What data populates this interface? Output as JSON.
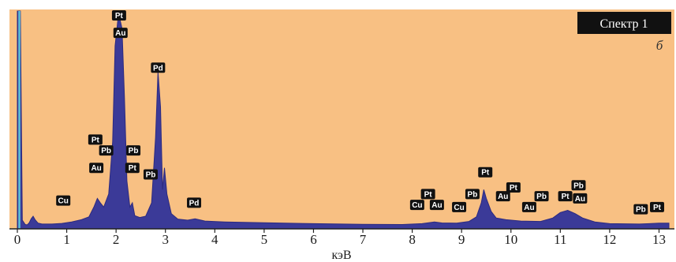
{
  "chart_data": {
    "type": "area",
    "title": "Спектр 1",
    "panel_label": "б",
    "xlabel": "кэВ",
    "ylabel": "",
    "xlim": [
      0,
      13.2
    ],
    "ylim": [
      0,
      100
    ],
    "x_ticks": [
      "0",
      "1",
      "2",
      "3",
      "4",
      "5",
      "6",
      "7",
      "8",
      "9",
      "10",
      "11",
      "12",
      "13"
    ],
    "grid": false,
    "colors": {
      "background": "#f8c083",
      "fill": "#3b3a98",
      "edge": "#2c2a80",
      "marker": "#5fc4d8",
      "tag_bg": "#111111",
      "tag_text": "#ffffff"
    },
    "series": [
      {
        "points": [
          [
            0.0,
            100
          ],
          [
            0.03,
            100
          ],
          [
            0.06,
            100
          ],
          [
            0.1,
            4
          ],
          [
            0.16,
            2
          ],
          [
            0.2,
            1.8
          ],
          [
            0.24,
            2.8
          ],
          [
            0.28,
            4.6
          ],
          [
            0.32,
            5.8
          ],
          [
            0.36,
            4.2
          ],
          [
            0.42,
            2.6
          ],
          [
            0.5,
            2.2
          ],
          [
            0.7,
            2.2
          ],
          [
            0.9,
            2.5
          ],
          [
            1.1,
            3.2
          ],
          [
            1.3,
            4.2
          ],
          [
            1.45,
            5.5
          ],
          [
            1.55,
            10
          ],
          [
            1.62,
            14
          ],
          [
            1.68,
            12
          ],
          [
            1.75,
            10
          ],
          [
            1.85,
            16
          ],
          [
            1.93,
            40
          ],
          [
            1.98,
            84
          ],
          [
            2.05,
            99
          ],
          [
            2.12,
            92
          ],
          [
            2.17,
            60
          ],
          [
            2.22,
            22
          ],
          [
            2.28,
            10
          ],
          [
            2.33,
            12
          ],
          [
            2.38,
            6
          ],
          [
            2.48,
            5.2
          ],
          [
            2.6,
            5.8
          ],
          [
            2.72,
            12
          ],
          [
            2.8,
            42
          ],
          [
            2.85,
            72
          ],
          [
            2.9,
            56
          ],
          [
            2.94,
            18
          ],
          [
            2.98,
            28
          ],
          [
            3.03,
            16
          ],
          [
            3.12,
            7
          ],
          [
            3.25,
            4.5
          ],
          [
            3.45,
            4
          ],
          [
            3.6,
            4.6
          ],
          [
            3.8,
            3.6
          ],
          [
            4.2,
            3.2
          ],
          [
            5.0,
            2.8
          ],
          [
            6.0,
            2.4
          ],
          [
            7.0,
            2.1
          ],
          [
            7.8,
            2.0
          ],
          [
            8.2,
            2.4
          ],
          [
            8.45,
            3.2
          ],
          [
            8.6,
            2.7
          ],
          [
            8.9,
            2.6
          ],
          [
            9.15,
            3.4
          ],
          [
            9.3,
            5.5
          ],
          [
            9.4,
            12
          ],
          [
            9.45,
            18
          ],
          [
            9.5,
            14
          ],
          [
            9.6,
            8
          ],
          [
            9.7,
            5
          ],
          [
            9.9,
            4.2
          ],
          [
            10.2,
            3.6
          ],
          [
            10.6,
            3.4
          ],
          [
            10.85,
            5
          ],
          [
            11.0,
            7.5
          ],
          [
            11.15,
            8.5
          ],
          [
            11.3,
            7
          ],
          [
            11.45,
            5
          ],
          [
            11.7,
            3.2
          ],
          [
            12.0,
            2.4
          ],
          [
            12.6,
            2.2
          ],
          [
            12.8,
            2.4
          ],
          [
            13.0,
            2.6
          ],
          [
            13.2,
            2.6
          ]
        ]
      }
    ],
    "annotations": [
      {
        "text": "Pt",
        "x": 2.06,
        "y": 98
      },
      {
        "text": "Au",
        "x": 2.09,
        "y": 90
      },
      {
        "text": "Pd",
        "x": 2.85,
        "y": 74
      },
      {
        "text": "Pt",
        "x": 1.58,
        "y": 41
      },
      {
        "text": "Pb",
        "x": 1.8,
        "y": 36
      },
      {
        "text": "Au",
        "x": 1.6,
        "y": 28
      },
      {
        "text": "Pb",
        "x": 2.35,
        "y": 36
      },
      {
        "text": "Pt",
        "x": 2.33,
        "y": 28
      },
      {
        "text": "Pb",
        "x": 2.7,
        "y": 25
      },
      {
        "text": "Cu",
        "x": 0.93,
        "y": 13
      },
      {
        "text": "Pd",
        "x": 3.58,
        "y": 12
      },
      {
        "text": "Pt",
        "x": 8.32,
        "y": 16
      },
      {
        "text": "Cu",
        "x": 8.1,
        "y": 11
      },
      {
        "text": "Au",
        "x": 8.5,
        "y": 11
      },
      {
        "text": "Pb",
        "x": 9.22,
        "y": 16
      },
      {
        "text": "Cu",
        "x": 8.95,
        "y": 10
      },
      {
        "text": "Pt",
        "x": 9.48,
        "y": 26
      },
      {
        "text": "Au",
        "x": 9.84,
        "y": 15
      },
      {
        "text": "Pt",
        "x": 10.05,
        "y": 19
      },
      {
        "text": "Au",
        "x": 10.37,
        "y": 10
      },
      {
        "text": "Pb",
        "x": 10.62,
        "y": 15
      },
      {
        "text": "Pt",
        "x": 11.1,
        "y": 15
      },
      {
        "text": "Pb",
        "x": 11.37,
        "y": 20
      },
      {
        "text": "Au",
        "x": 11.4,
        "y": 14
      },
      {
        "text": "Pb",
        "x": 12.63,
        "y": 9
      },
      {
        "text": "Pt",
        "x": 12.96,
        "y": 10
      }
    ]
  }
}
